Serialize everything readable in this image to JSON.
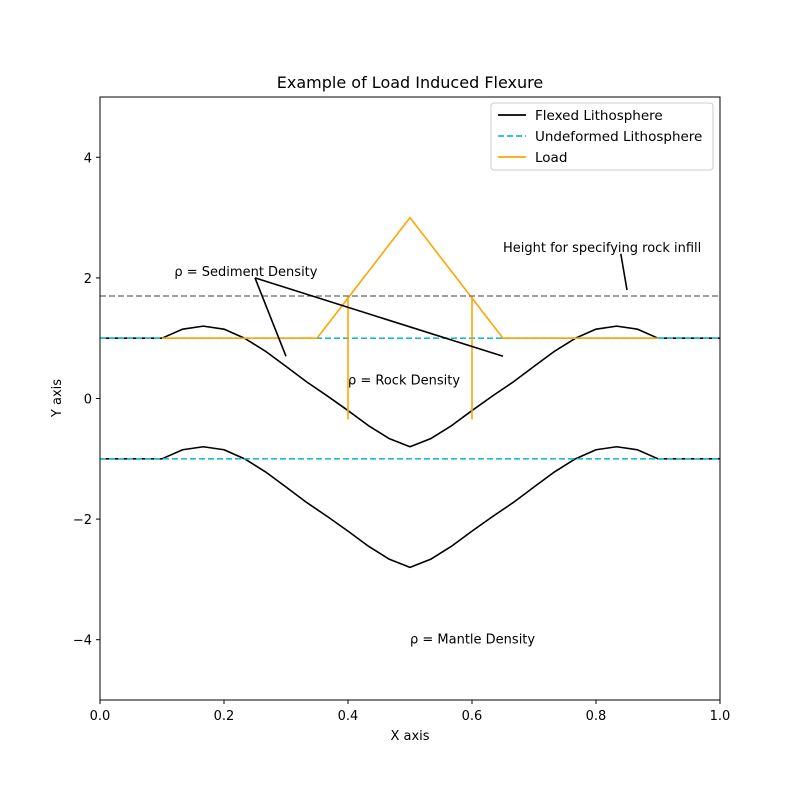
{
  "chart_data": {
    "type": "line",
    "title": "Example of Load Induced Flexure",
    "xlabel": "X axis",
    "ylabel": "Y axis",
    "xlim": [
      0.0,
      1.0
    ],
    "ylim": [
      -5,
      5
    ],
    "xticks": [
      0.0,
      0.2,
      0.4,
      0.6,
      0.8,
      1.0
    ],
    "xtick_labels": [
      "0.0",
      "0.2",
      "0.4",
      "0.6",
      "0.8",
      "1.0"
    ],
    "yticks": [
      -4,
      -2,
      0,
      2,
      4
    ],
    "ytick_labels": [
      "−4",
      "−2",
      "0",
      "2",
      "4"
    ],
    "grid": false,
    "legend_position": "top-right",
    "series": [
      {
        "name": "Flexed Lithosphere",
        "color": "#000000",
        "style": "solid",
        "x": [
          0.0,
          0.1,
          0.1333,
          0.1667,
          0.2,
          0.2333,
          0.2667,
          0.3,
          0.3333,
          0.3667,
          0.4,
          0.4333,
          0.4667,
          0.5,
          0.5333,
          0.5667,
          0.6,
          0.6333,
          0.6667,
          0.7,
          0.7333,
          0.7667,
          0.8,
          0.8333,
          0.8667,
          0.9,
          1.0
        ],
        "y": [
          1.0,
          1.0,
          1.15,
          1.2,
          1.15,
          0.999,
          0.785,
          0.533,
          0.276,
          0.043,
          -0.2,
          -0.452,
          -0.666,
          -0.8,
          -0.666,
          -0.452,
          -0.2,
          0.043,
          0.276,
          0.533,
          0.785,
          0.999,
          1.15,
          1.2,
          1.15,
          1.0,
          1.0
        ]
      },
      {
        "name": "",
        "color": "#000000",
        "style": "solid",
        "x": [
          0.0,
          0.1,
          0.1333,
          0.1667,
          0.2,
          0.2333,
          0.2667,
          0.3,
          0.3333,
          0.3667,
          0.4,
          0.4333,
          0.4667,
          0.5,
          0.5333,
          0.5667,
          0.6,
          0.6333,
          0.6667,
          0.7,
          0.7333,
          0.7667,
          0.8,
          0.8333,
          0.8667,
          0.9,
          1.0
        ],
        "y": [
          -1.0,
          -1.0,
          -0.85,
          -0.8,
          -0.85,
          -1.001,
          -1.215,
          -1.467,
          -1.724,
          -1.957,
          -2.2,
          -2.452,
          -2.666,
          -2.8,
          -2.666,
          -2.452,
          -2.2,
          -1.957,
          -1.724,
          -1.467,
          -1.215,
          -1.001,
          -0.85,
          -0.8,
          -0.85,
          -1.0,
          -1.0
        ]
      },
      {
        "name": "Undeformed Lithosphere",
        "color": "#17becf",
        "style": "dashed",
        "x": [
          0.0,
          1.0
        ],
        "y": [
          1.0,
          1.0
        ]
      },
      {
        "name": "",
        "color": "#17becf",
        "style": "dashed",
        "x": [
          0.0,
          1.0
        ],
        "y": [
          -1.0,
          -1.0
        ]
      },
      {
        "name": "Load",
        "color": "#ffa500",
        "style": "solid",
        "x": [
          0.1,
          0.35,
          0.5,
          0.65,
          0.9
        ],
        "y": [
          1.0,
          1.0,
          3.0,
          1.0,
          1.0
        ]
      },
      {
        "name": "",
        "color": "#ffa500",
        "style": "solid",
        "x": [
          0.4,
          0.4
        ],
        "y": [
          1.7,
          -0.35
        ]
      },
      {
        "name": "",
        "color": "#ffa500",
        "style": "solid",
        "x": [
          0.6,
          0.6
        ],
        "y": [
          1.7,
          -0.35
        ]
      },
      {
        "name": "",
        "color": "#808080",
        "style": "dashed",
        "x": [
          0.0,
          1.0
        ],
        "y": [
          1.7,
          1.7
        ]
      }
    ],
    "legend": [
      {
        "label": "Flexed Lithosphere",
        "color": "#000000",
        "style": "solid"
      },
      {
        "label": "Undeformed Lithosphere",
        "color": "#17becf",
        "style": "dashed"
      },
      {
        "label": "Load",
        "color": "#ffa500",
        "style": "solid"
      }
    ],
    "annotations": [
      {
        "text": "ρ = Sediment Density",
        "x": 0.12,
        "y": 2.1,
        "arrows_to": [
          [
            0.3,
            0.7
          ],
          [
            0.65,
            0.7
          ]
        ],
        "arrow_from": [
          0.25,
          2.0
        ]
      },
      {
        "text": "ρ = Rock Density",
        "x": 0.4,
        "y": 0.3,
        "arrows_to": [],
        "arrow_from": null
      },
      {
        "text": "Height for specifying rock infill",
        "x": 0.65,
        "y": 2.5,
        "arrows_to": [
          [
            0.85,
            1.8
          ]
        ],
        "arrow_from": [
          0.84,
          2.4
        ]
      },
      {
        "text": "ρ = Mantle Density",
        "x": 0.5,
        "y": -4.0,
        "arrows_to": [],
        "arrow_from": null
      }
    ]
  }
}
